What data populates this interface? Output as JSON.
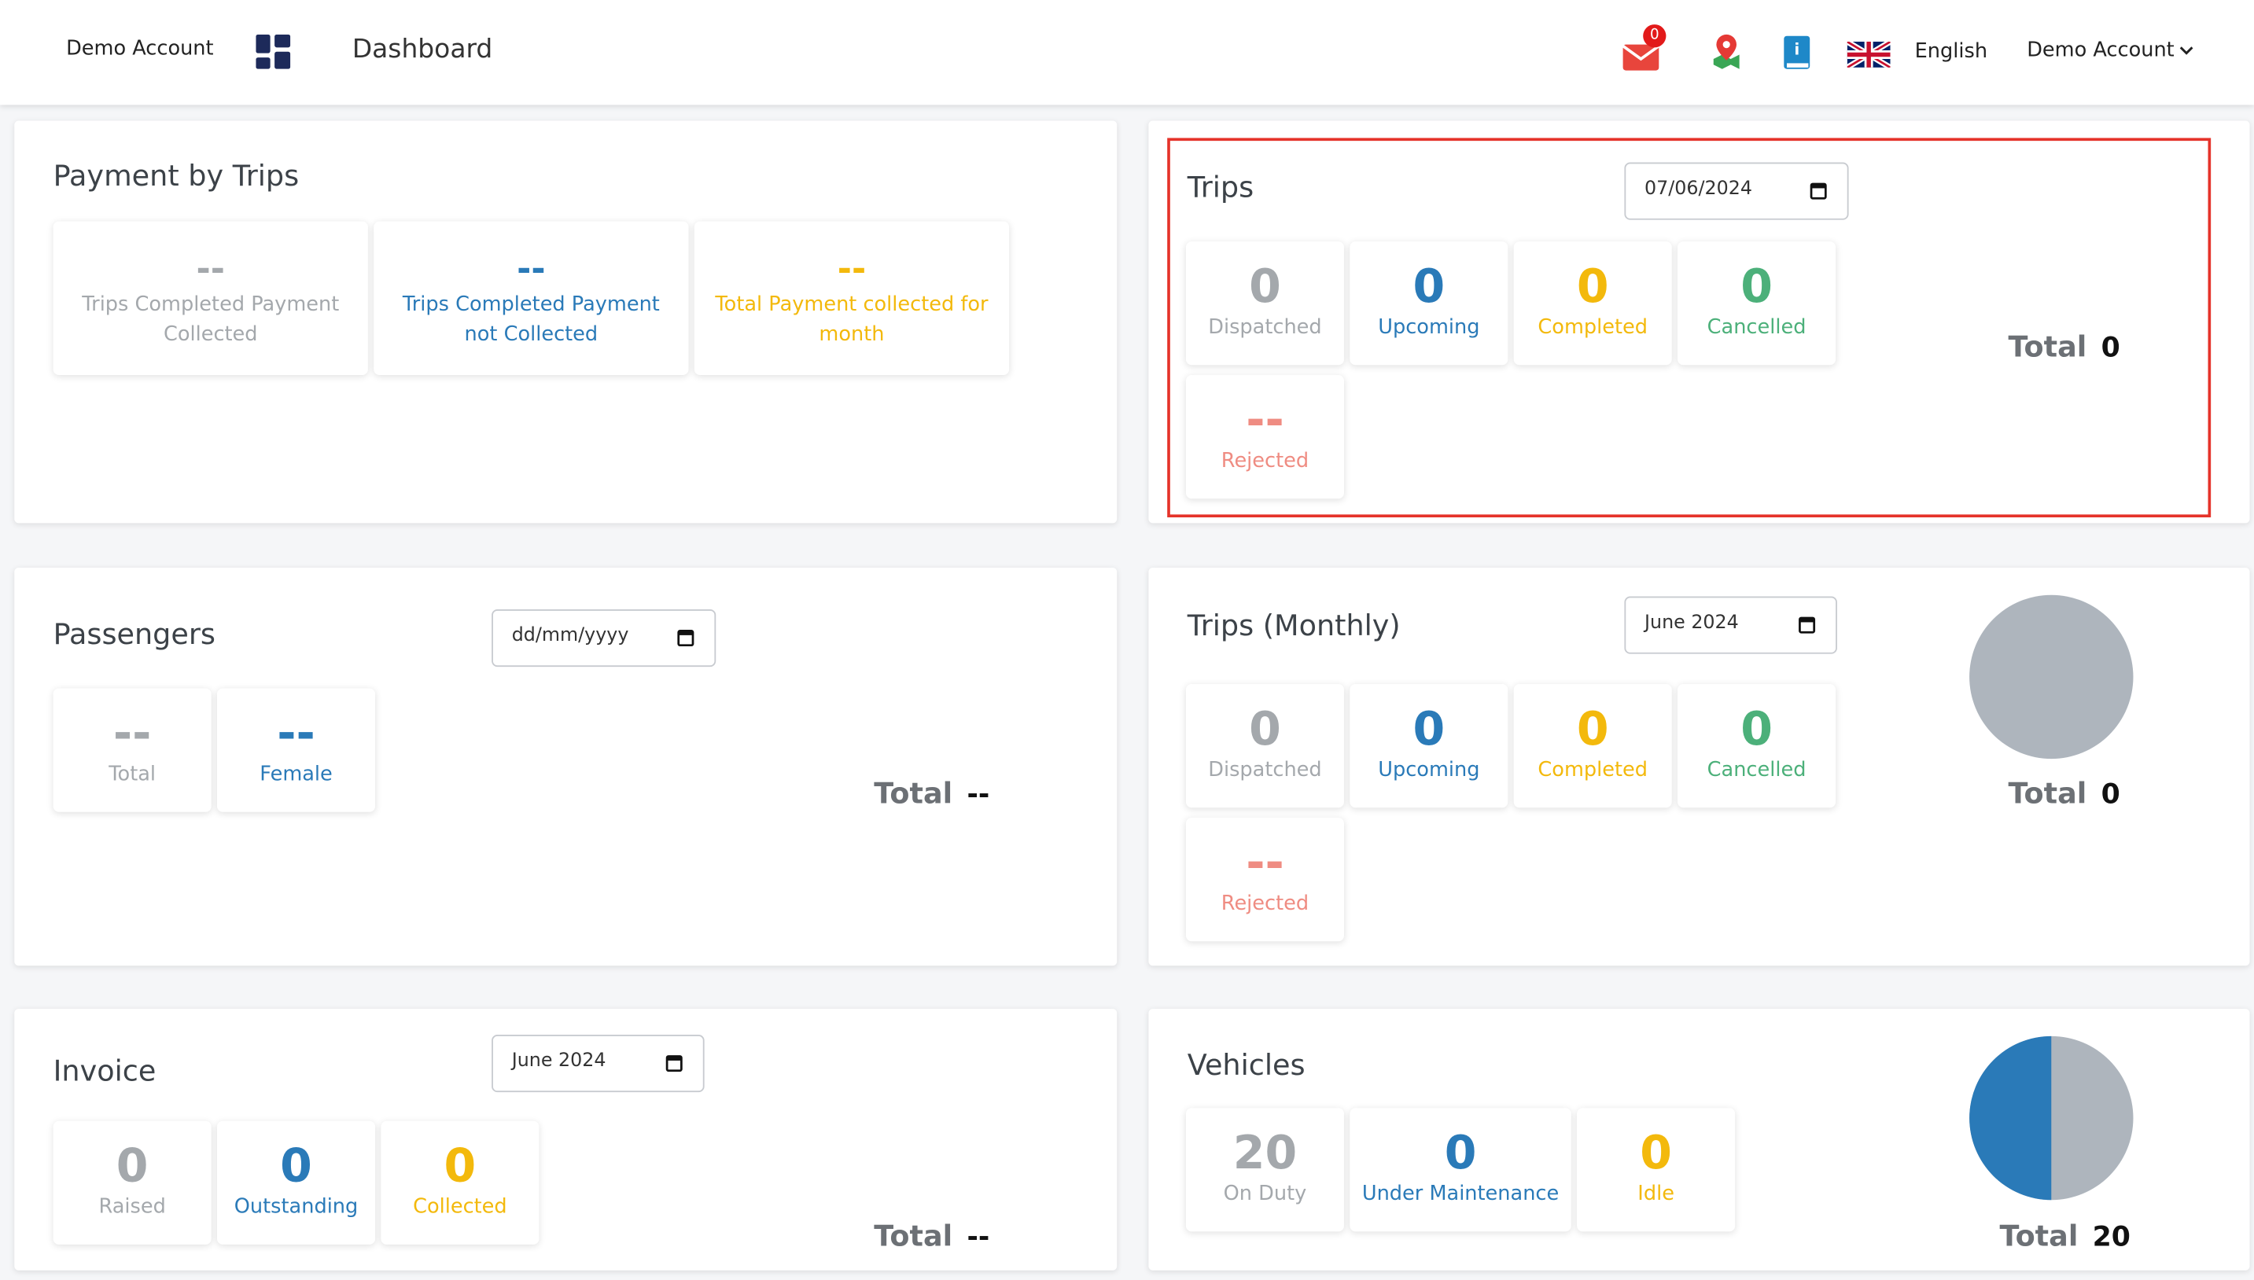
{
  "header": {
    "account": "Demo Account",
    "title": "Dashboard",
    "notification_count": 0,
    "language": "English",
    "user": "Demo Account"
  },
  "payment_by_trips": {
    "title": "Payment by Trips",
    "stats": [
      {
        "value": "--",
        "label": "Trips Completed Payment Collected"
      },
      {
        "value": "--",
        "label": "Trips Completed Payment not Collected"
      },
      {
        "value": "--",
        "label": "Total Payment collected for month"
      }
    ]
  },
  "trips": {
    "title": "Trips",
    "date": "07/06/2024",
    "stats": [
      {
        "value": 0,
        "label": "Dispatched"
      },
      {
        "value": 0,
        "label": "Upcoming"
      },
      {
        "value": 0,
        "label": "Completed"
      },
      {
        "value": 0,
        "label": "Cancelled"
      },
      {
        "value": "--",
        "label": "Rejected"
      }
    ],
    "total_label": "Total",
    "total": 0
  },
  "passengers": {
    "title": "Passengers",
    "date": "dd/mm/yyyy",
    "stats": [
      {
        "value": "--",
        "label": "Total"
      },
      {
        "value": "--",
        "label": "Female"
      }
    ],
    "total_label": "Total",
    "total": "--"
  },
  "trips_monthly": {
    "title": "Trips (Monthly)",
    "date": "June 2024",
    "stats": [
      {
        "value": 0,
        "label": "Dispatched"
      },
      {
        "value": 0,
        "label": "Upcoming"
      },
      {
        "value": 0,
        "label": "Completed"
      },
      {
        "value": 0,
        "label": "Cancelled"
      },
      {
        "value": "--",
        "label": "Rejected"
      }
    ],
    "total_label": "Total",
    "total": 0
  },
  "invoice": {
    "title": "Invoice",
    "date": "June 2024",
    "stats": [
      {
        "value": 0,
        "label": "Raised"
      },
      {
        "value": 0,
        "label": "Outstanding"
      },
      {
        "value": 0,
        "label": "Collected"
      }
    ],
    "total_label": "Total",
    "total": "--"
  },
  "vehicles": {
    "title": "Vehicles",
    "stats": [
      {
        "value": 20,
        "label": "On Duty"
      },
      {
        "value": 0,
        "label": "Under Maintenance"
      },
      {
        "value": 0,
        "label": "Idle"
      }
    ],
    "total_label": "Total",
    "total": 20
  }
}
